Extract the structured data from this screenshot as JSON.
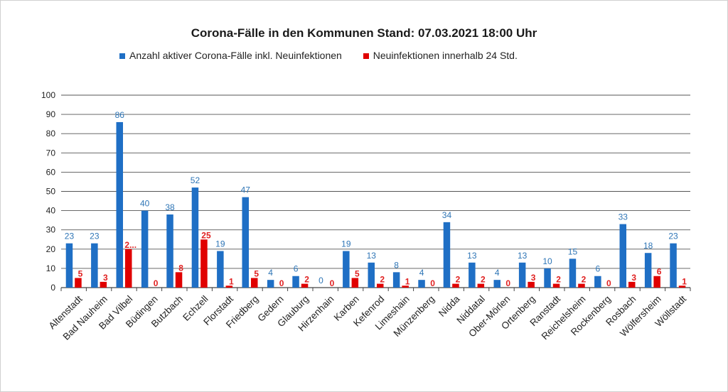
{
  "chart_data": {
    "type": "bar",
    "title": "Corona-Fälle in den Kommunen Stand: 07.03.2021 18:00 Uhr",
    "categories": [
      "Altenstadt",
      "Bad Nauheim",
      "Bad Vilbel",
      "Büdingen",
      "Butzbach",
      "Echzell",
      "Florstadt",
      "Friedberg",
      "Gedern",
      "Glauburg",
      "Hirzenhain",
      "Karben",
      "Kefenrod",
      "Limeshain",
      "Münzenberg",
      "Nidda",
      "Niddatal",
      "Ober-Mörlen",
      "Ortenberg",
      "Ranstadt",
      "Reichelsheim",
      "Rockenberg",
      "Rosbach",
      "Wölfersheim",
      "Wöllstadt"
    ],
    "series": [
      {
        "name": "Anzahl aktiver Corona-Fälle inkl. Neuinfektionen",
        "color": "#1f6fc5",
        "label_color": "#2e75b6",
        "values": [
          23,
          23,
          86,
          40,
          38,
          52,
          19,
          47,
          4,
          6,
          0,
          19,
          13,
          8,
          4,
          34,
          13,
          4,
          13,
          10,
          15,
          6,
          33,
          18,
          23
        ],
        "labels": [
          "23",
          "23",
          "86",
          "40",
          "38",
          "52",
          "19",
          "47",
          "4",
          "6",
          "0",
          "19",
          "13",
          "8",
          "4",
          "34",
          "13",
          "4",
          "13",
          "10",
          "15",
          "6",
          "33",
          "18",
          "23"
        ]
      },
      {
        "name": "Neuinfektionen innerhalb 24 Std.",
        "color": "#e00000",
        "label_color": "#e02020",
        "values": [
          5,
          3,
          20,
          0,
          8,
          25,
          1,
          5,
          0,
          2,
          0,
          5,
          2,
          1,
          0,
          2,
          2,
          0,
          3,
          2,
          2,
          0,
          3,
          6,
          1
        ],
        "labels": [
          "5",
          "3",
          "2...",
          "0",
          "8",
          "25",
          "1",
          "5",
          "0",
          "2",
          "0",
          "5",
          "2",
          "1",
          "0",
          "2",
          "2",
          "0",
          "3",
          "2",
          "2",
          "0",
          "3",
          "6",
          "1"
        ]
      }
    ],
    "ylim": [
      0,
      100
    ],
    "yticks": [
      0,
      10,
      20,
      30,
      40,
      50,
      60,
      70,
      80,
      90,
      100
    ],
    "grid": true,
    "legend": "top-center",
    "xlabel": "",
    "ylabel": ""
  }
}
